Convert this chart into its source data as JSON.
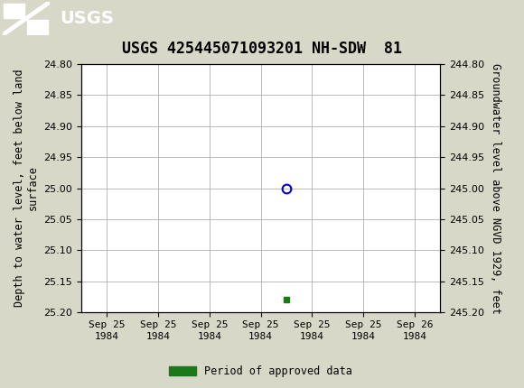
{
  "title": "USGS 425445071093201 NH-SDW  81",
  "ylabel_left": "Depth to water level, feet below land\nsurface",
  "ylabel_right": "Groundwater level above NGVD 1929, feet",
  "ylim_left": [
    24.8,
    25.2
  ],
  "ylim_right": [
    244.8,
    245.2
  ],
  "yticks_left": [
    24.8,
    24.85,
    24.9,
    24.95,
    25.0,
    25.05,
    25.1,
    25.15,
    25.2
  ],
  "yticks_right": [
    244.8,
    244.85,
    244.9,
    244.95,
    245.0,
    245.05,
    245.1,
    245.15,
    245.2
  ],
  "data_point_x": 3.5,
  "data_point_y": 25.0,
  "data_point_color": "#0000cc",
  "data_point_marker": "o",
  "green_point_x": 3.5,
  "green_point_y": 25.18,
  "green_point_color": "#1a7a1a",
  "green_point_marker": "s",
  "header_color": "#1a6633",
  "background_color": "#d8d8c8",
  "plot_bg_color": "#ffffff",
  "grid_color": "#b0b0b0",
  "xlabel_ticks": [
    "Sep 25\n1984",
    "Sep 25\n1984",
    "Sep 25\n1984",
    "Sep 25\n1984",
    "Sep 25\n1984",
    "Sep 25\n1984",
    "Sep 26\n1984"
  ],
  "xtick_positions": [
    0,
    1,
    2,
    3,
    4,
    5,
    6
  ],
  "legend_label": "Period of approved data",
  "font_color": "#000000",
  "title_fontsize": 12,
  "axis_label_fontsize": 8.5,
  "tick_fontsize": 8
}
